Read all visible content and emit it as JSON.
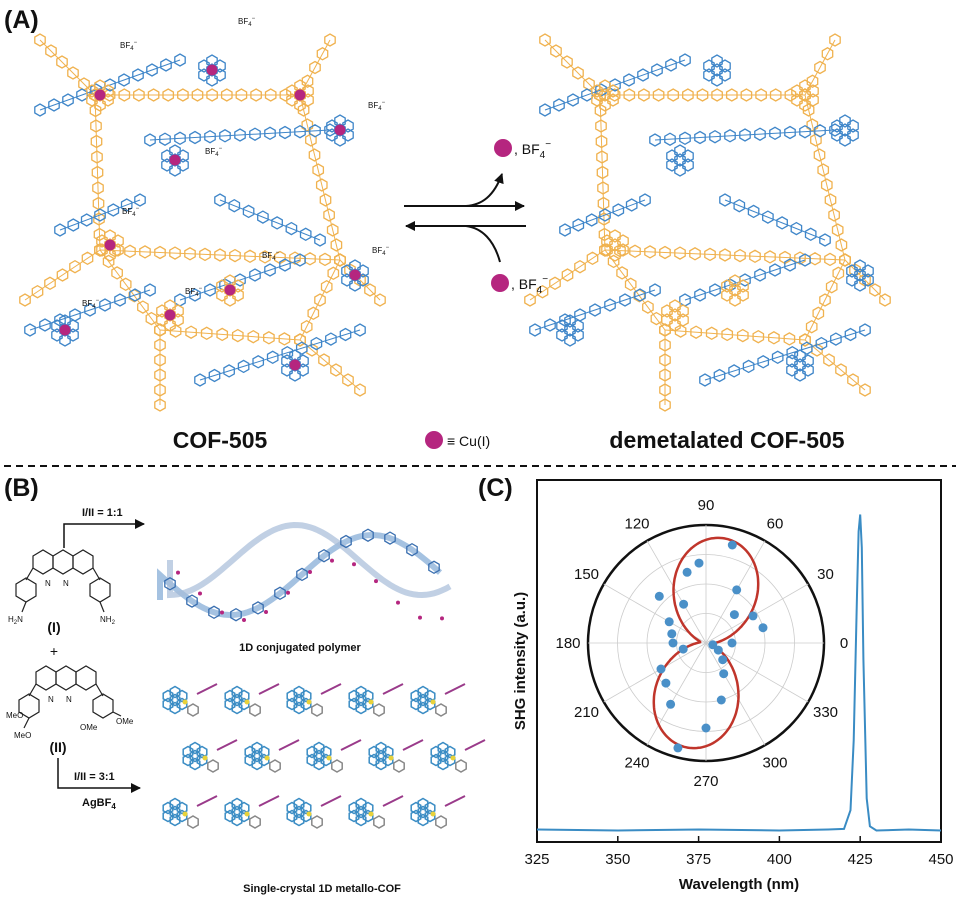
{
  "panel_labels": {
    "a": "(A)",
    "b": "(B)",
    "c": "(C)"
  },
  "panel_a": {
    "left_title": "COF-505",
    "right_title": "demetalated COF-505",
    "legend_text": "≡ Cu(I)",
    "counter_ion": "BF",
    "counter_ion_sub": "4",
    "counter_ion_sup": "−",
    "forward_text": ", BF",
    "backward_text": ", BF",
    "colors": {
      "orange": "#f0b24f",
      "blue": "#3f86c9",
      "cu": "#b5267f"
    }
  },
  "panel_b": {
    "ratio_top": "I/II = 1:1",
    "ratio_bottom": "I/II = 3:1",
    "reagent": "AgBF",
    "reagent_sub": "4",
    "label_I": "(I)",
    "label_II": "(II)",
    "plus": "+",
    "nh2": "H",
    "nh2_sub": "2",
    "nh2_n": "N",
    "nh2_right": "NH",
    "ome": "MeO",
    "ome_right": "OMe",
    "caption_top": "1D conjugated polymer",
    "caption_bottom": "Single-crystal 1D metallo-COF"
  },
  "panel_c": {
    "x_title": "Wavelength (nm)",
    "y_title": "SHG intensity (a.u.)",
    "x_ticks": [
      "325",
      "350",
      "375",
      "400",
      "425",
      "450"
    ],
    "polar_labels": [
      "0",
      "30",
      "60",
      "90",
      "120",
      "150",
      "180",
      "210",
      "240",
      "270",
      "300",
      "330"
    ]
  },
  "chart_data": {
    "type": "line",
    "xlabel": "Wavelength (nm)",
    "ylabel": "SHG intensity (a.u.)",
    "xlim": [
      325,
      450
    ],
    "ylim": [
      0,
      1
    ],
    "series": [
      {
        "x": [
          325,
          350,
          375,
          400,
          415,
          420,
          422,
          423,
          424,
          424.5,
          425,
          425.5,
          426,
          427,
          428,
          430,
          440,
          450
        ],
        "y": [
          0.02,
          0.02,
          0.02,
          0.02,
          0.02,
          0.025,
          0.08,
          0.3,
          0.75,
          0.95,
          1.0,
          0.9,
          0.55,
          0.12,
          0.03,
          0.02,
          0.02,
          0.02
        ]
      }
    ],
    "polar_inset": {
      "type": "scatter",
      "angles_deg": [
        95,
        75,
        60,
        45,
        30,
        15,
        0,
        345,
        330,
        315,
        300,
        285,
        270,
        255,
        240,
        225,
        210,
        195,
        180,
        165,
        150,
        135,
        120,
        105
      ],
      "values": [
        0.68,
        0.86,
        0.52,
        0.34,
        0.46,
        0.5,
        0.22,
        0.06,
        0.12,
        0.2,
        0.3,
        0.5,
        0.72,
        0.92,
        0.6,
        0.48,
        0.44,
        0.2,
        0.28,
        0.3,
        0.36,
        0.56,
        0.38,
        0.62
      ],
      "fit": "cos^2",
      "point_color": "#4a90c8",
      "fit_color": "#c0352b"
    }
  }
}
